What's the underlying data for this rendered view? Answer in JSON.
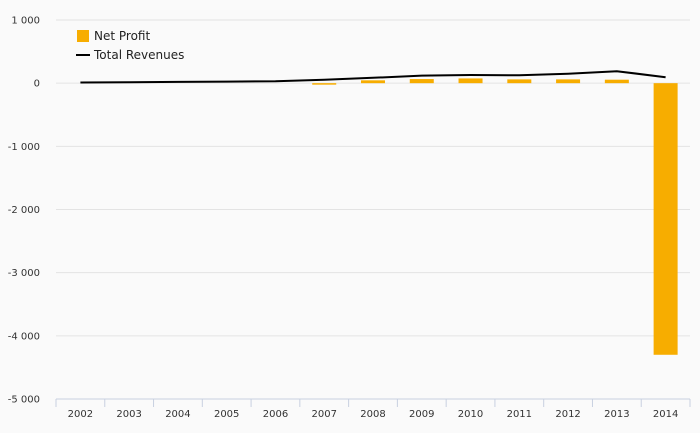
{
  "chart_data": {
    "type": "bar",
    "title": "",
    "xlabel": "",
    "ylabel": "",
    "categories": [
      "2002",
      "2003",
      "2004",
      "2005",
      "2006",
      "2007",
      "2008",
      "2009",
      "2010",
      "2011",
      "2012",
      "2013",
      "2014"
    ],
    "series": [
      {
        "name": "Net Profit",
        "type": "bar",
        "color": "#f7ad00",
        "values": [
          0,
          0,
          0,
          0,
          0,
          -10,
          45,
          65,
          75,
          60,
          60,
          55,
          -4300
        ]
      },
      {
        "name": "Total Revenues",
        "type": "line",
        "color": "#000000",
        "values": [
          10,
          15,
          20,
          25,
          30,
          55,
          85,
          120,
          130,
          125,
          150,
          190,
          95
        ]
      }
    ],
    "ylim": [
      -5000,
      1000
    ],
    "yticks": [
      1000,
      0,
      -1000,
      -2000,
      -3000,
      -4000,
      -5000
    ],
    "ytick_labels": [
      "1 000",
      "0",
      "-1 000",
      "-2 000",
      "-3 000",
      "-4 000",
      "-5 000"
    ],
    "grid": true,
    "legend_position": "top-left"
  }
}
